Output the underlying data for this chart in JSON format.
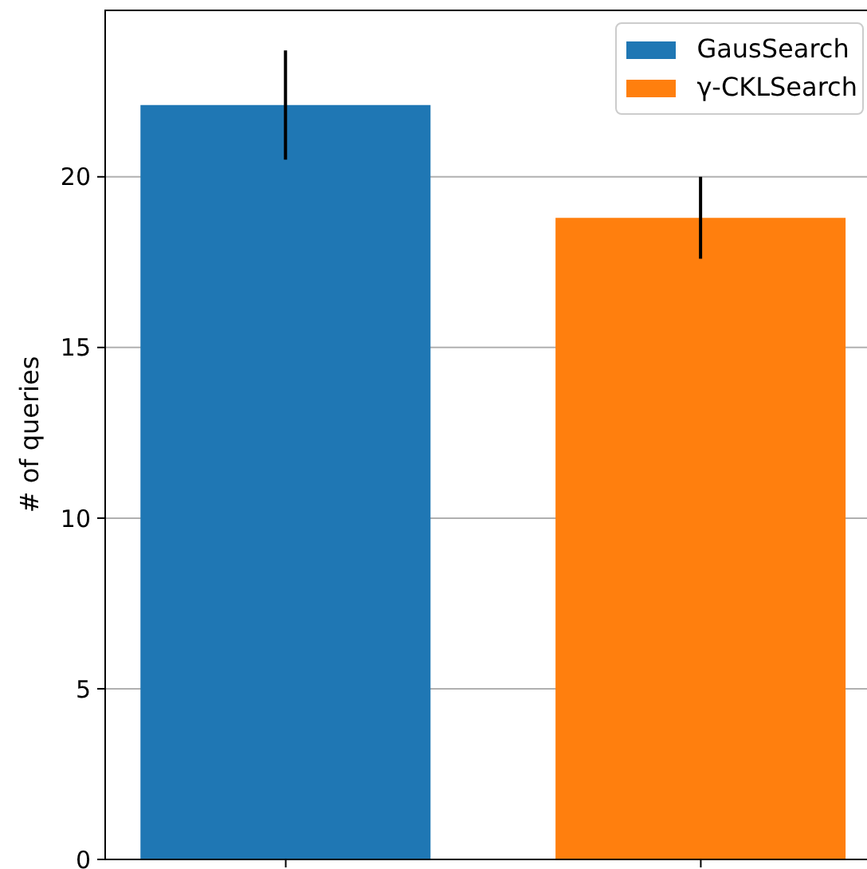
{
  "chart_data": {
    "type": "bar",
    "ylabel": "# of queries",
    "categories": [
      null,
      null
    ],
    "series": [
      {
        "name": "GausSearch",
        "color": "#1f77b4",
        "values": [
          22.1,
          null
        ],
        "errors": [
          1.6,
          null
        ]
      },
      {
        "name": "γ-CKLSearch",
        "color": "#ff7f0e",
        "values": [
          null,
          18.8
        ],
        "errors": [
          null,
          1.2
        ]
      }
    ],
    "ylim": [
      0,
      24.9
    ],
    "yticks": [
      0,
      5,
      10,
      15,
      20
    ],
    "grid": "y",
    "legend": "top right",
    "tick_labels": "y"
  }
}
